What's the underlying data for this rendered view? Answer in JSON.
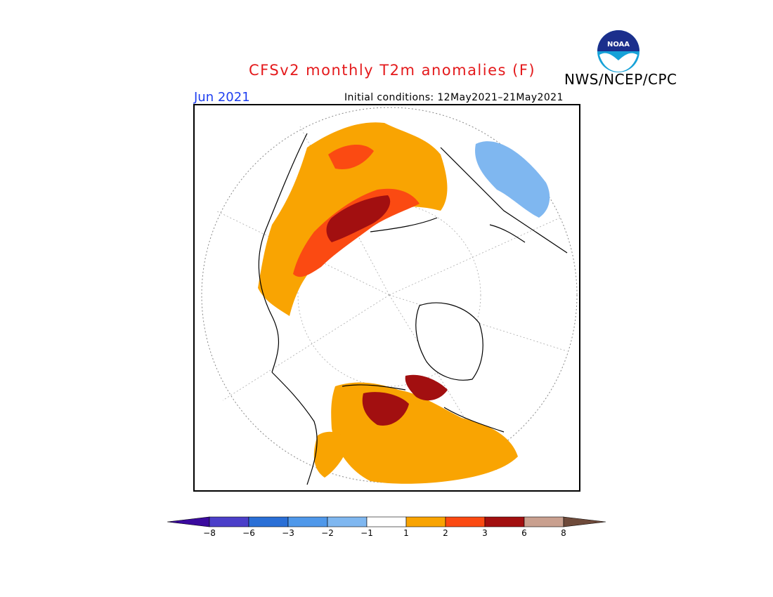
{
  "header": {
    "title": "CFSv2 monthly T2m anomalies (F)",
    "agency": "NWS/NCEP/CPC",
    "month": "Jun 2021",
    "initial_conditions": "Initial conditions: 12May2021–21May2021",
    "logo_text": "NOAA"
  },
  "legend": {
    "bins": [
      {
        "color": "#3a0a9e"
      },
      {
        "color": "#4b3fc9"
      },
      {
        "color": "#2a6fd6"
      },
      {
        "color": "#4f98ea"
      },
      {
        "color": "#7fb7f0"
      },
      {
        "color": "#ffffff"
      },
      {
        "color": "#f9a402"
      },
      {
        "color": "#fb4a12"
      },
      {
        "color": "#a20f10"
      },
      {
        "color": "#c9a08f"
      },
      {
        "color": "#6e4a3a"
      }
    ],
    "tick_labels": [
      "−8",
      "−6",
      "−3",
      "−2",
      "−1",
      "1",
      "2",
      "3",
      "6",
      "8"
    ]
  },
  "colors": {
    "title": "#e41a1c",
    "month": "#1f3ff0",
    "anom_1_2": "#f9a402",
    "anom_2_3": "#fb4a12",
    "anom_3_6": "#a20f10",
    "anom_neg_1_2": "#7fb7f0",
    "anom_neg_2_3": "#4f98ea"
  }
}
